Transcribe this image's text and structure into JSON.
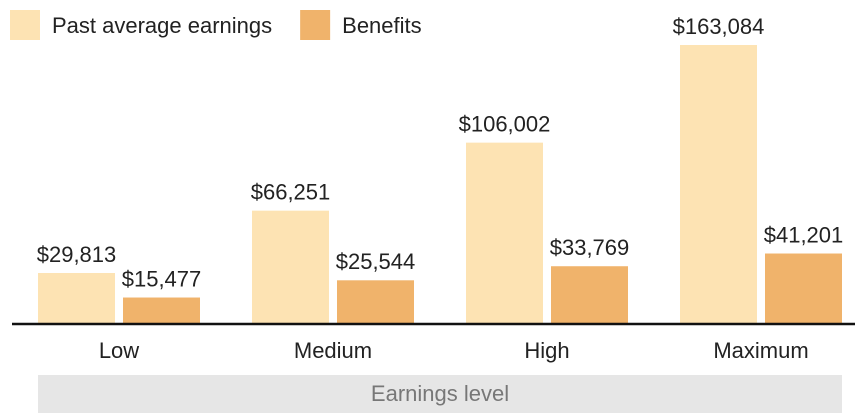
{
  "chart_data": {
    "type": "bar",
    "x_label": "Earnings level",
    "categories": [
      "Low",
      "Medium",
      "High",
      "Maximum"
    ],
    "series": [
      {
        "name": "Past average earnings",
        "color": "#fde3b3",
        "values": [
          29813,
          66251,
          106002,
          163084
        ],
        "value_labels": [
          "$29,813",
          "$66,251",
          "$106,002",
          "$163,084"
        ]
      },
      {
        "name": "Benefits",
        "color": "#f0b36b",
        "values": [
          15477,
          25544,
          33769,
          41201
        ],
        "value_labels": [
          "$15,477",
          "$25,544",
          "$33,769",
          "$41,201"
        ]
      }
    ],
    "legend": "top-left"
  }
}
